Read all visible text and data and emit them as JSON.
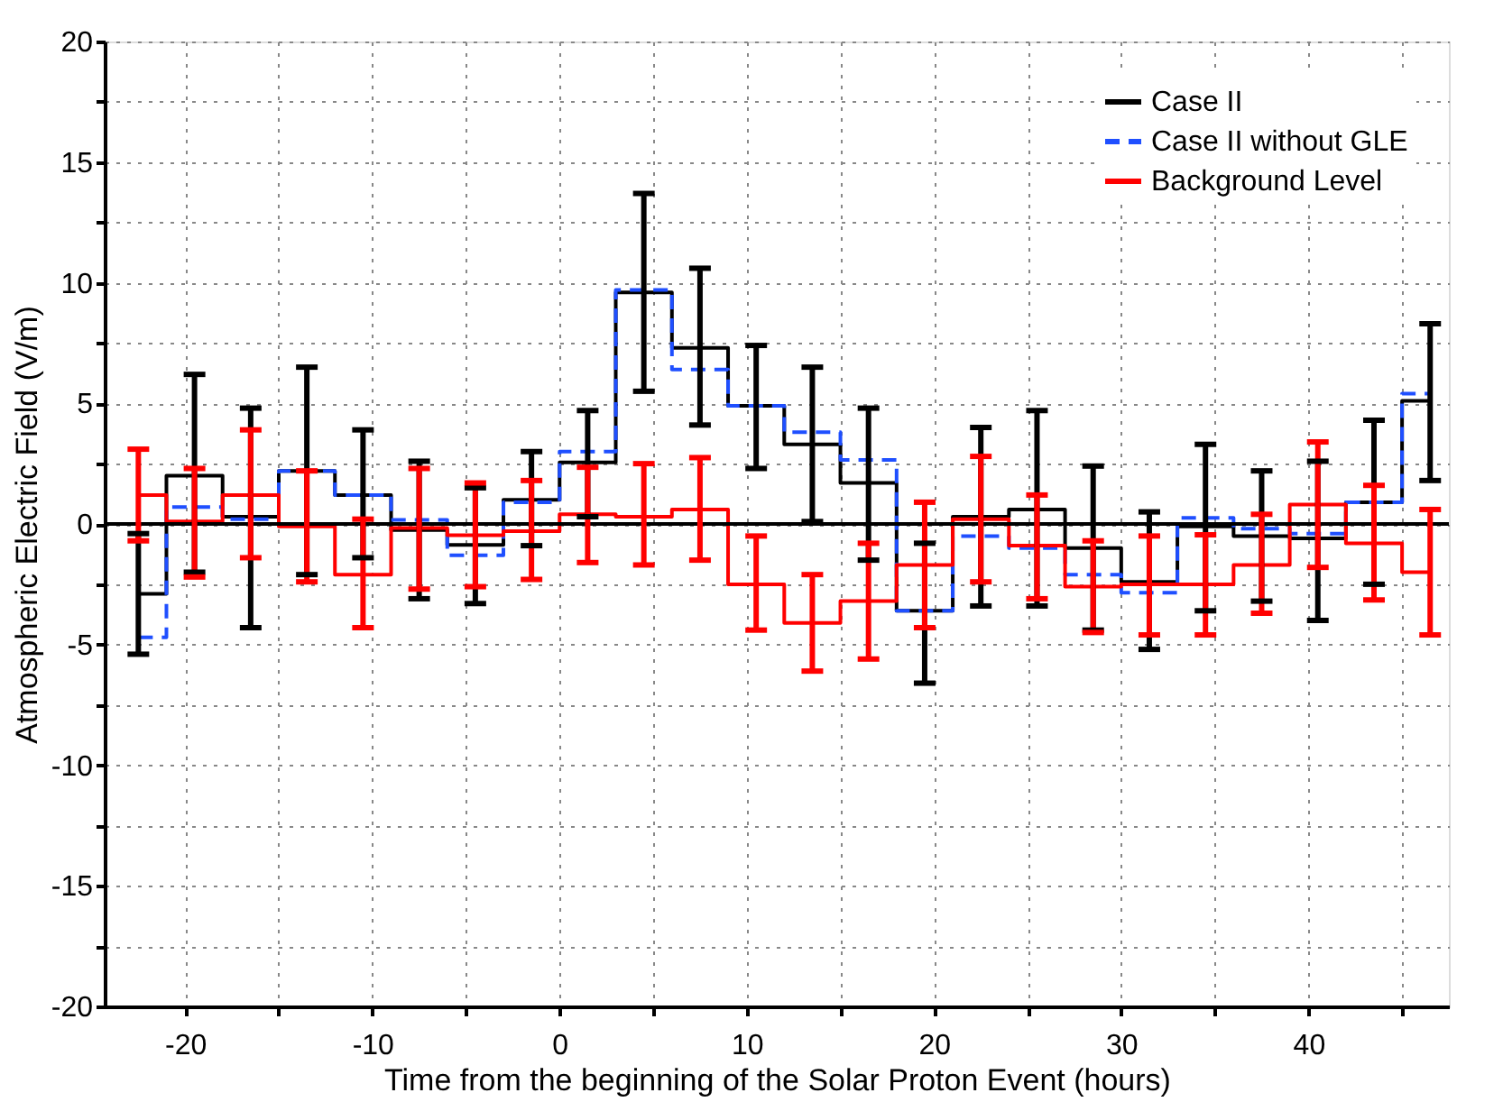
{
  "chart_data": {
    "type": "step",
    "xlabel": "Time from the beginning of the Solar Proton Event (hours)",
    "ylabel": "Atmospheric Electric Field (V/m)",
    "x": [
      -22.5,
      -19.5,
      -16.5,
      -13.5,
      -10.5,
      -7.5,
      -4.5,
      -1.5,
      1.5,
      4.5,
      7.5,
      10.5,
      13.5,
      16.5,
      19.5,
      22.5,
      25.5,
      28.5,
      31.5,
      34.5,
      37.5,
      40.5,
      43.5,
      46.5
    ],
    "xlim": [
      -24.3,
      47.5
    ],
    "xticks": [
      -20,
      {
        "value": -15,
        "label": null
      },
      -10,
      {
        "value": -5,
        "label": null
      },
      0,
      {
        "value": 5,
        "label": null
      },
      10,
      {
        "value": 15,
        "label": null
      },
      20,
      {
        "value": 25,
        "label": null
      },
      30,
      {
        "value": 35,
        "label": null
      },
      40,
      {
        "value": 45,
        "label": null
      }
    ],
    "ylim": [
      -20,
      20
    ],
    "yticks": [
      -20,
      {
        "value": -17.5,
        "label": null
      },
      -15,
      {
        "value": -12.5,
        "label": null
      },
      -10,
      {
        "value": -7.5,
        "label": null
      },
      -5,
      {
        "value": -2.5,
        "label": null
      },
      0,
      {
        "value": 2.5,
        "label": null
      },
      5,
      {
        "value": 7.5,
        "label": null
      },
      10,
      {
        "value": 12.5,
        "label": null
      },
      15,
      {
        "value": 17.5,
        "label": null
      },
      20
    ],
    "grid": true,
    "legend": "top right",
    "marker": "none",
    "ref_lines": [
      {
        "axis": "y",
        "value": 0,
        "color": "#000000",
        "line_style": "solid"
      }
    ],
    "series": [
      {
        "name": "Case II",
        "color": "#000000",
        "line_style": "solid",
        "values": [
          -2.9,
          2.0,
          0.3,
          2.2,
          1.2,
          -0.25,
          -0.87,
          1.0,
          2.55,
          9.6,
          7.3,
          4.9,
          3.3,
          1.7,
          -3.6,
          0.3,
          0.6,
          -1.0,
          -2.4,
          -0.1,
          -0.5,
          -0.6,
          0.9,
          5.1
        ],
        "errors": [
          [
            -5.4,
            -0.4
          ],
          [
            -2.0,
            6.2
          ],
          [
            -4.3,
            4.8
          ],
          [
            -2.1,
            6.5
          ],
          [
            -1.4,
            3.9
          ],
          [
            -3.1,
            2.6
          ],
          [
            -3.3,
            1.5
          ],
          [
            -0.9,
            3.0
          ],
          [
            0.3,
            4.7
          ],
          [
            5.5,
            13.7
          ],
          [
            4.1,
            10.6
          ],
          [
            2.3,
            7.4
          ],
          [
            0.1,
            6.5
          ],
          [
            -1.5,
            4.8
          ],
          [
            -6.6,
            -0.8
          ],
          [
            -3.4,
            4.0
          ],
          [
            -3.4,
            4.7
          ],
          [
            -4.4,
            2.4
          ],
          [
            -5.2,
            0.5
          ],
          [
            -3.6,
            3.3
          ],
          [
            -3.2,
            2.2
          ],
          [
            -4.0,
            2.6
          ],
          [
            -2.5,
            4.3
          ],
          [
            1.8,
            8.3
          ]
        ]
      },
      {
        "name": "Case II without GLE",
        "color": "#1f4fff",
        "line_style": "dashed",
        "values": [
          -4.7,
          0.7,
          0.2,
          2.2,
          1.2,
          0.17,
          -1.3,
          0.9,
          3.0,
          9.7,
          6.4,
          4.9,
          3.8,
          2.65,
          -3.6,
          -0.5,
          -1.0,
          -2.1,
          -2.85,
          0.25,
          -0.2,
          -0.4,
          0.9,
          5.4
        ]
      },
      {
        "name": "Background Level",
        "color": "#ff0000",
        "line_style": "solid",
        "values": [
          1.2,
          0.1,
          1.2,
          -0.1,
          -2.1,
          -0.17,
          -0.47,
          -0.3,
          0.4,
          0.3,
          0.6,
          -2.5,
          -4.1,
          -3.2,
          -1.7,
          0.2,
          -0.9,
          -2.6,
          -2.5,
          -2.5,
          -1.7,
          0.8,
          -0.8,
          -2.0
        ],
        "errors": [
          [
            -0.7,
            3.1
          ],
          [
            -2.2,
            2.3
          ],
          [
            -1.4,
            3.9
          ],
          [
            -2.4,
            2.2
          ],
          [
            -4.3,
            0.2
          ],
          [
            -2.7,
            2.3
          ],
          [
            -2.6,
            1.7
          ],
          [
            -2.3,
            1.8
          ],
          [
            -1.6,
            2.35
          ],
          [
            -1.7,
            2.5
          ],
          [
            -1.5,
            2.75
          ],
          [
            -4.4,
            -0.5
          ],
          [
            -6.1,
            -2.1
          ],
          [
            -5.6,
            -0.8
          ],
          [
            -4.3,
            0.9
          ],
          [
            -2.4,
            2.8
          ],
          [
            -3.1,
            1.2
          ],
          [
            -4.5,
            -0.7
          ],
          [
            -4.6,
            -0.5
          ],
          [
            -4.6,
            -0.45
          ],
          [
            -3.7,
            0.4
          ],
          [
            -1.8,
            3.4
          ],
          [
            -3.15,
            1.6
          ],
          [
            -4.6,
            0.6
          ]
        ]
      }
    ]
  }
}
